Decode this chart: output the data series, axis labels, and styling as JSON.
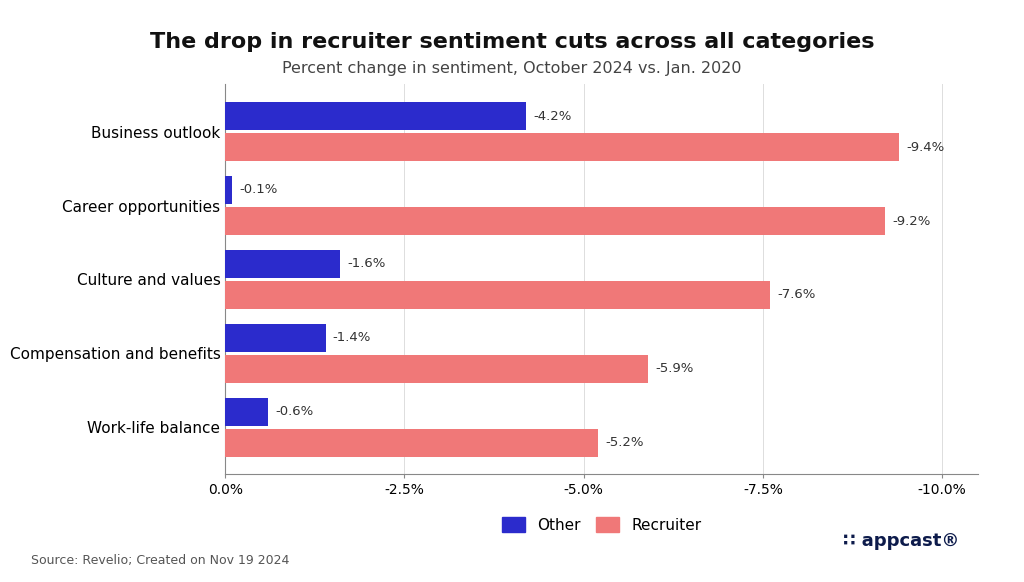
{
  "title": "The drop in recruiter sentiment cuts across all categories",
  "subtitle": "Percent change in sentiment, October 2024 vs. Jan. 2020",
  "categories": [
    "Business outlook",
    "Career opportunities",
    "Culture and values",
    "Compensation and benefits",
    "Work-life balance"
  ],
  "recruiter_values": [
    -9.4,
    -9.2,
    -7.6,
    -5.9,
    -5.2
  ],
  "other_values": [
    -4.2,
    -0.1,
    -1.6,
    -1.4,
    -0.6
  ],
  "recruiter_labels": [
    "-9.4%",
    "-9.2%",
    "-7.6%",
    "-5.9%",
    "-5.2%"
  ],
  "other_labels": [
    "-4.2%",
    "-0.1%",
    "-1.6%",
    "-1.4%",
    "-0.6%"
  ],
  "recruiter_color": "#F07878",
  "other_color": "#2B2BCC",
  "background_color": "#FFFFFF",
  "title_fontsize": 16,
  "subtitle_fontsize": 11.5,
  "xticks": [
    0,
    -2.5,
    -5.0,
    -7.5,
    -10.0
  ],
  "xtick_labels": [
    "0.0%",
    "-2.5%",
    "-5.0%",
    "-7.5%",
    "-10.0%"
  ],
  "source_text": "Source: Revelio; Created on Nov 19 2024",
  "bar_height": 0.38,
  "bar_gap": 0.04,
  "label_fontsize": 9.5,
  "tick_fontsize": 10,
  "category_fontsize": 11,
  "legend_fontsize": 11
}
